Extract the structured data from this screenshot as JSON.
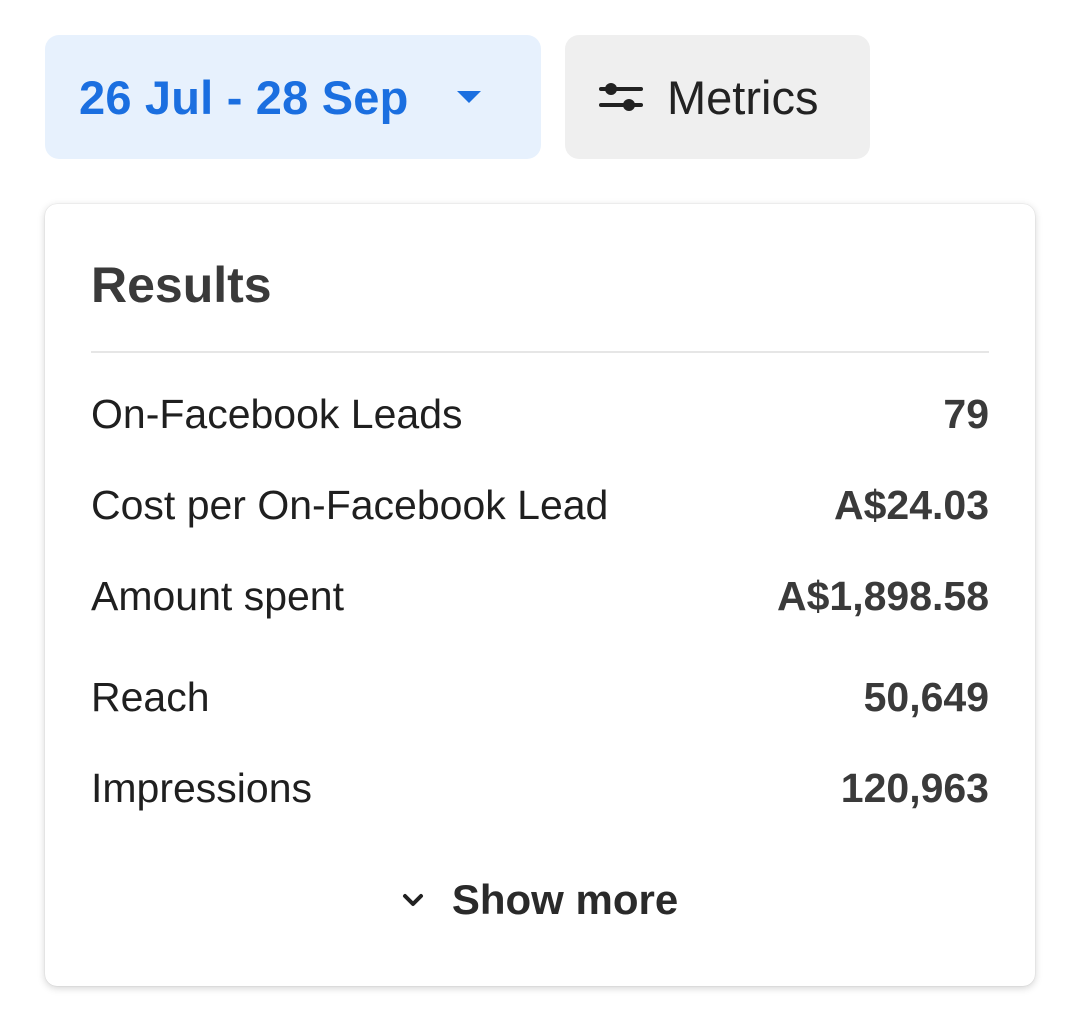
{
  "toolbar": {
    "date_range_label": "26 Jul - 28 Sep",
    "metrics_label": "Metrics"
  },
  "results": {
    "title": "Results",
    "rows": [
      {
        "label": "On-Facebook Leads",
        "value": "79"
      },
      {
        "label": "Cost per On-Facebook Lead",
        "value": "A$24.03"
      },
      {
        "label": "Amount spent",
        "value": "A$1,898.58"
      },
      {
        "label": "Reach",
        "value": "50,649"
      },
      {
        "label": "Impressions",
        "value": "120,963"
      }
    ],
    "show_more_label": "Show more"
  },
  "icons": {
    "date_dropdown": "caret-down-icon",
    "metrics": "sliders-icon",
    "show_more": "chevron-down-icon"
  },
  "colors": {
    "accent": "#1b6fe0",
    "date_button_bg": "#e7f1fd",
    "metrics_button_bg": "#efefef"
  }
}
